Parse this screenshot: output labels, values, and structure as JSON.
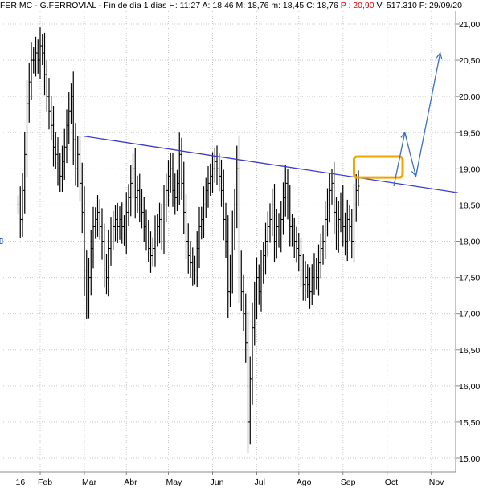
{
  "header": {
    "symbol": "FER.MC - G.FERROVIAL - Fin de día 1 días",
    "high": "H: 11:27 A: 18,46 M: 18,76 m: 18,45 C: 18,76",
    "highlight": "P : 20,90",
    "rest": "V: 517.310 F: 29/09/20"
  },
  "chart_data": {
    "type": "ohlc",
    "title": "",
    "xlabel": "",
    "ylabel": "",
    "ylim": [
      14.9,
      21.2
    ],
    "yticks": [
      {
        "v": 21.0,
        "label": "21,00"
      },
      {
        "v": 20.5,
        "label": "20,50"
      },
      {
        "v": 20.0,
        "label": "20,00"
      },
      {
        "v": 19.5,
        "label": "19,50"
      },
      {
        "v": 19.0,
        "label": "19,00"
      },
      {
        "v": 18.5,
        "label": "18,50"
      },
      {
        "v": 18.0,
        "label": "18,00"
      },
      {
        "v": 17.5,
        "label": "17,50"
      },
      {
        "v": 17.0,
        "label": "17,00"
      },
      {
        "v": 16.5,
        "label": "16,50"
      },
      {
        "v": 16.0,
        "label": "16,00"
      },
      {
        "v": 15.5,
        "label": "15,50"
      },
      {
        "v": 15.0,
        "label": "15,00"
      }
    ],
    "xticks": [
      {
        "i": 0,
        "label": "16"
      },
      {
        "i": 10,
        "label": "Feb"
      },
      {
        "i": 30,
        "label": "Mar"
      },
      {
        "i": 49,
        "label": "Abr"
      },
      {
        "i": 68,
        "label": "May"
      },
      {
        "i": 88,
        "label": "Jun"
      },
      {
        "i": 108,
        "label": "Jul"
      },
      {
        "i": 127,
        "label": "Ago"
      },
      {
        "i": 147,
        "label": "Sep"
      },
      {
        "i": 167,
        "label": "Oct"
      },
      {
        "i": 187,
        "label": "Nov"
      }
    ],
    "close": [
      18.5,
      18.3,
      18.7,
      19.2,
      19.9,
      20.2,
      20.5,
      20.5,
      20.6,
      20.5,
      20.7,
      20.6,
      20.3,
      20.0,
      19.8,
      19.6,
      19.3,
      19.2,
      19.0,
      18.9,
      19.1,
      19.3,
      19.6,
      19.8,
      20.0,
      19.4,
      19.0,
      19.2,
      18.8,
      18.4,
      17.6,
      17.2,
      17.5,
      17.9,
      18.2,
      18.3,
      18.4,
      18.2,
      18.0,
      17.6,
      17.5,
      17.9,
      18.1,
      18.2,
      18.3,
      18.2,
      18.3,
      18.2,
      18.1,
      18.4,
      18.6,
      18.8,
      19.0,
      18.6,
      18.7,
      18.5,
      18.4,
      18.2,
      18.1,
      17.9,
      17.8,
      17.9,
      18.1,
      18.2,
      18.3,
      18.1,
      18.5,
      18.7,
      18.9,
      19.0,
      18.7,
      18.6,
      18.8,
      19.2,
      18.8,
      18.4,
      18.0,
      17.8,
      17.7,
      17.6,
      17.6,
      17.9,
      18.2,
      18.3,
      18.5,
      18.7,
      18.8,
      18.9,
      19.0,
      19.1,
      19.0,
      18.9,
      18.7,
      18.3,
      18.0,
      17.3,
      17.6,
      18.1,
      18.5,
      19.0,
      17.6,
      17.3,
      17.0,
      16.6,
      15.5,
      16.1,
      16.8,
      17.2,
      17.5,
      17.3,
      17.6,
      17.8,
      18.0,
      18.2,
      18.3,
      18.5,
      18.0,
      18.2,
      18.1,
      18.3,
      18.6,
      18.8,
      18.5,
      18.2,
      18.1,
      18.0,
      17.9,
      17.8,
      17.6,
      17.4,
      17.5,
      17.4,
      17.3,
      17.5,
      17.6,
      17.5,
      17.7,
      17.9,
      18.0,
      18.3,
      18.5,
      18.7,
      18.8,
      18.4,
      18.1,
      18.3,
      18.5,
      18.2,
      18.0,
      18.3,
      18.2,
      18.0,
      18.5,
      18.7,
      18.76
    ],
    "resistance_line": {
      "start": [
        30,
        19.45
      ],
      "end": [
        199,
        18.67
      ],
      "color": "#3b3bd0"
    },
    "breakout_box": {
      "x": [
        152,
        174
      ],
      "y": [
        18.88,
        19.17
      ],
      "color": "#f0a500"
    },
    "projection": {
      "points": [
        [
          170,
          18.76
        ],
        [
          175,
          19.5
        ],
        [
          180,
          18.9
        ],
        [
          191,
          20.6
        ]
      ],
      "color": "#3a6fc4"
    },
    "colors": {
      "bars": "#000000",
      "grid": "#c8c8c8",
      "axis": "#888888"
    }
  }
}
